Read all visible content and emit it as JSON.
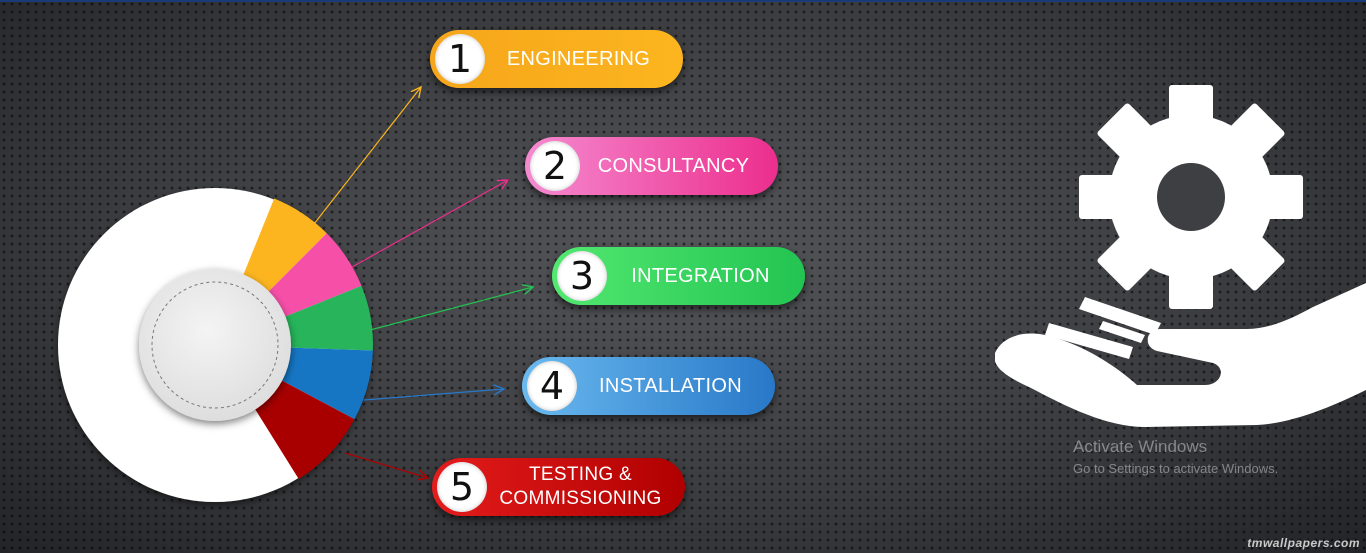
{
  "steps": [
    {
      "number": "1",
      "label": "ENGINEERING",
      "color": "#fcb51f"
    },
    {
      "number": "2",
      "label": "CONSULTANCY",
      "color": "#ec2e8d"
    },
    {
      "number": "3",
      "label": "INTEGRATION",
      "color": "#23c452"
    },
    {
      "number": "4",
      "label": "INSTALLATION",
      "color": "#2878c8"
    },
    {
      "number": "5",
      "label_line1": "TESTING &",
      "label_line2": "COMMISSIONING",
      "color": "#b00000"
    }
  ],
  "donut": {
    "segment_colors": [
      "#fcb51f",
      "#f64fa8",
      "#27b45a",
      "#1676c4",
      "#a80000"
    ],
    "base_color": "#ffffff"
  },
  "icon": {
    "name": "gear-in-hand-icon",
    "color": "#ffffff"
  },
  "activation_notice": {
    "title": "Activate Windows",
    "subtitle": "Go to Settings to activate Windows."
  },
  "watermark": "tmwallpapers.com"
}
